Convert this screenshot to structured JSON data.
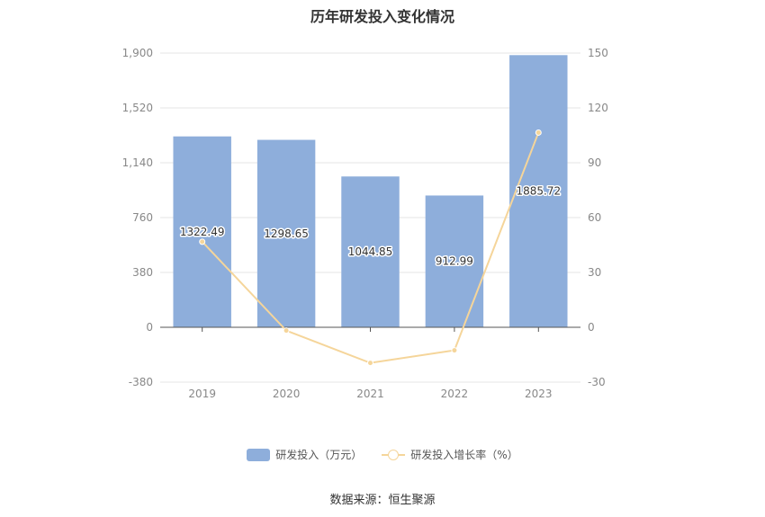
{
  "chart_data": {
    "type": "bar",
    "title": "历年研发投入变化情况",
    "categories": [
      "2019",
      "2020",
      "2021",
      "2022",
      "2023"
    ],
    "series": [
      {
        "name": "研发投入（万元）",
        "type": "bar",
        "axis": "left",
        "color": "#8eaedb",
        "values": [
          1322.49,
          1298.65,
          1044.85,
          912.99,
          1885.72
        ]
      },
      {
        "name": "研发投入增长率（%）",
        "type": "line",
        "axis": "right",
        "color": "#f5d59a",
        "values": [
          46.8,
          -1.8,
          -19.5,
          -12.6,
          106.5
        ]
      }
    ],
    "y_left": {
      "ticks": [
        "1,900",
        "1,520",
        "1,140",
        "760",
        "380",
        "0",
        "-380"
      ],
      "range": [
        -380,
        1900
      ]
    },
    "y_right": {
      "ticks": [
        "150",
        "120",
        "90",
        "60",
        "30",
        "0",
        "-30"
      ],
      "range": [
        -30,
        150
      ]
    },
    "legend": "bottom",
    "source": "数据来源：恒生聚源"
  }
}
